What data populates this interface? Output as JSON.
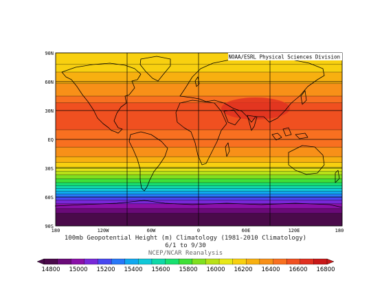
{
  "credit": "NOAA/ESRL Physical Sciences Division",
  "lat_ticks": [
    "90N",
    "60N",
    "30N",
    "EQ",
    "30S",
    "60S",
    "90S"
  ],
  "lon_ticks": [
    "180",
    "120W",
    "60W",
    "0",
    "60E",
    "120E",
    "180"
  ],
  "title": "100mb Geopotential Height (m) Climatology (1981-2010 Climatology)",
  "date_range": "6/1  to 9/30",
  "source": "NCEP/NCAR Reanalysis",
  "colorbar": {
    "labels": [
      "14800",
      "15000",
      "15200",
      "15400",
      "15600",
      "15800",
      "16000",
      "16200",
      "16400",
      "16600",
      "16800"
    ],
    "colors": [
      "#4a0a4a",
      "#6a0a78",
      "#8a10a8",
      "#7828d8",
      "#4848f0",
      "#2878f8",
      "#10a8f0",
      "#10c8d8",
      "#10d8a8",
      "#18e070",
      "#40e038",
      "#80e020",
      "#b8e018",
      "#e8e818",
      "#f8d010",
      "#f8b010",
      "#f89018",
      "#f87020",
      "#f05020",
      "#e03020",
      "#c81818"
    ]
  },
  "bands": [
    {
      "lat": 90,
      "color": "#f8d010"
    },
    {
      "lat": 78,
      "color": "#f8d010"
    },
    {
      "lat": 70,
      "color": "#f8b010"
    },
    {
      "lat": 58,
      "color": "#f89018"
    },
    {
      "lat": 45,
      "color": "#f87020"
    },
    {
      "lat": 38,
      "color": "#f05020"
    },
    {
      "lat": 10,
      "color": "#f87020"
    },
    {
      "lat": -8,
      "color": "#f89018"
    },
    {
      "lat": -18,
      "color": "#f8b010"
    },
    {
      "lat": -24,
      "color": "#f8d010"
    },
    {
      "lat": -29,
      "color": "#e8e818"
    },
    {
      "lat": -33,
      "color": "#b8e018"
    },
    {
      "lat": -37,
      "color": "#80e020"
    },
    {
      "lat": -41,
      "color": "#40e038"
    },
    {
      "lat": -45,
      "color": "#18e070"
    },
    {
      "lat": -48,
      "color": "#10d8a8"
    },
    {
      "lat": -51,
      "color": "#10c8d8"
    },
    {
      "lat": -54,
      "color": "#10a8f0"
    },
    {
      "lat": -57,
      "color": "#2878f8"
    },
    {
      "lat": -60,
      "color": "#4848f0"
    },
    {
      "lat": -63,
      "color": "#7828d8"
    },
    {
      "lat": -67,
      "color": "#8a10a8"
    },
    {
      "lat": -72,
      "color": "#6a0a78"
    },
    {
      "lat": -77,
      "color": "#4a0a4a"
    }
  ],
  "high_core_color": "#e03020"
}
